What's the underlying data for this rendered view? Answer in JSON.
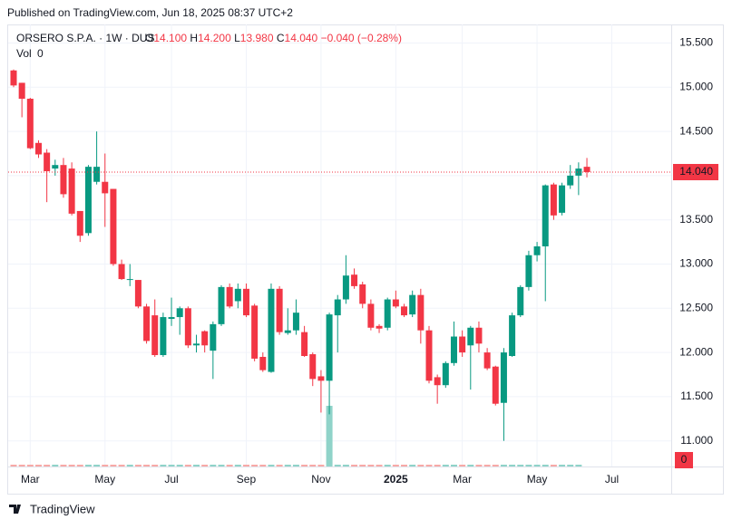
{
  "published": "Published on TradingView.com, Jun 18, 2025 08:37 UTC+2",
  "brand": "TradingView",
  "chart_data": {
    "type": "candlestick",
    "title": "ORSERO S.P.A. · 1W · DUS",
    "quote": [
      {
        "key": "O",
        "value": 14.1,
        "label": "14.100"
      },
      {
        "key": "H",
        "value": 14.2,
        "label": "14.200"
      },
      {
        "key": "L",
        "value": 13.98,
        "label": "13.980"
      },
      {
        "key": "C",
        "value": 14.04,
        "label": "14.040"
      }
    ],
    "change": {
      "value": -0.04,
      "label": "−0.040 (−0.28%)"
    },
    "volume_title": "Vol",
    "volume_last": 0,
    "up_color": "#089981",
    "down_color": "#f23645",
    "volume_color": "#8fd3c9",
    "categories": [
      null,
      null,
      "Mar",
      null,
      null,
      null,
      null,
      null,
      null,
      null,
      null,
      "May",
      null,
      null,
      null,
      null,
      null,
      null,
      null,
      "Jul",
      null,
      null,
      null,
      null,
      null,
      null,
      null,
      null,
      "Sep",
      null,
      null,
      null,
      null,
      null,
      null,
      null,
      null,
      "Nov",
      null,
      null,
      null,
      null,
      null,
      null,
      null,
      null,
      "2025",
      null,
      null,
      null,
      null,
      null,
      null,
      null,
      "Mar",
      null,
      null,
      null,
      null,
      null,
      null,
      null,
      null,
      "May",
      null,
      null,
      null,
      null,
      null,
      null,
      null,
      null,
      "Jul"
    ],
    "open": [
      15.19,
      15.05,
      14.87,
      14.37,
      14.26,
      14.08,
      14.12,
      14.08,
      13.6,
      13.35,
      13.93,
      13.93,
      13.85,
      13.0,
      12.82,
      12.82,
      12.52,
      12.42,
      11.97,
      12.38,
      12.4,
      12.5,
      12.08,
      12.24,
      12.02,
      12.32,
      12.74,
      12.58,
      12.72,
      12.53,
      11.95,
      11.78,
      12.72,
      12.22,
      12.25,
      12.23,
      11.98,
      11.73,
      11.68,
      12.42,
      12.6,
      12.88,
      12.77,
      12.55,
      12.3,
      12.28,
      12.6,
      12.52,
      12.43,
      12.65,
      12.25,
      11.72,
      11.63,
      11.88,
      12.18,
      12.08,
      12.28,
      12.0,
      11.84,
      11.43,
      11.96,
      12.42,
      12.74,
      13.1,
      13.2,
      13.9,
      13.58,
      13.89,
      14.0,
      14.1,
      null,
      null,
      null
    ],
    "high": [
      15.2,
      15.05,
      14.88,
      14.4,
      14.3,
      14.18,
      14.2,
      14.15,
      13.6,
      14.12,
      14.5,
      14.25,
      13.85,
      13.05,
      13.0,
      12.82,
      12.55,
      12.6,
      12.45,
      12.62,
      12.52,
      12.52,
      12.2,
      12.25,
      12.35,
      12.76,
      12.78,
      12.78,
      12.78,
      12.55,
      12.0,
      12.78,
      12.75,
      12.5,
      12.6,
      12.3,
      12.0,
      11.8,
      12.45,
      12.65,
      13.1,
      12.95,
      12.8,
      12.6,
      12.32,
      12.62,
      12.7,
      12.55,
      12.7,
      12.72,
      12.3,
      11.75,
      11.9,
      12.35,
      12.25,
      12.3,
      12.35,
      12.05,
      11.85,
      12.05,
      12.45,
      12.76,
      13.15,
      13.25,
      13.9,
      13.92,
      13.92,
      14.12,
      14.15,
      14.2,
      null,
      null,
      null
    ],
    "low": [
      15.0,
      14.66,
      14.3,
      14.2,
      13.7,
      14.0,
      13.75,
      13.55,
      13.25,
      13.32,
      13.9,
      13.42,
      12.98,
      12.82,
      12.75,
      12.5,
      12.1,
      11.95,
      11.95,
      12.3,
      12.2,
      12.05,
      12.0,
      12.0,
      11.7,
      12.3,
      12.5,
      12.5,
      12.4,
      11.9,
      11.78,
      11.77,
      12.2,
      12.2,
      12.2,
      11.95,
      11.62,
      11.32,
      11.3,
      12.0,
      12.55,
      12.72,
      12.5,
      12.25,
      12.22,
      12.25,
      12.5,
      12.4,
      12.4,
      12.1,
      11.65,
      11.42,
      11.6,
      11.85,
      11.95,
      11.58,
      12.0,
      11.8,
      11.4,
      11.0,
      11.95,
      12.4,
      12.7,
      13.03,
      12.58,
      13.5,
      13.55,
      13.85,
      13.78,
      13.98,
      null,
      null,
      null
    ],
    "close": [
      15.02,
      14.87,
      14.31,
      14.24,
      14.05,
      14.12,
      13.79,
      13.57,
      13.32,
      14.1,
      14.1,
      13.8,
      13.0,
      12.83,
      12.83,
      12.52,
      12.13,
      11.97,
      12.4,
      12.4,
      12.5,
      12.08,
      12.1,
      12.08,
      12.32,
      12.74,
      12.52,
      12.72,
      12.42,
      11.93,
      11.8,
      12.72,
      12.23,
      12.25,
      12.45,
      11.96,
      11.7,
      11.68,
      12.43,
      12.6,
      12.87,
      12.75,
      12.55,
      12.28,
      12.27,
      12.6,
      12.52,
      12.42,
      12.65,
      12.25,
      11.68,
      11.63,
      11.88,
      12.18,
      12.0,
      12.28,
      12.1,
      11.82,
      11.42,
      12.0,
      12.42,
      12.74,
      13.1,
      13.2,
      13.89,
      13.55,
      13.89,
      14.0,
      14.08,
      14.04,
      null,
      null,
      null
    ],
    "volume": [
      3,
      3,
      3,
      3,
      3,
      3,
      3,
      3,
      3,
      3,
      3,
      3,
      3,
      3,
      3,
      3,
      3,
      3,
      3,
      3,
      3,
      3,
      3,
      3,
      3,
      3,
      3,
      3,
      3,
      3,
      3,
      3,
      3,
      3,
      3,
      3,
      3,
      3,
      100,
      3,
      3,
      3,
      3,
      3,
      3,
      3,
      3,
      3,
      3,
      3,
      3,
      3,
      3,
      3,
      3,
      3,
      3,
      3,
      3,
      3,
      3,
      3,
      3,
      3,
      3,
      3,
      3,
      3,
      3,
      0,
      null,
      null,
      null
    ],
    "ylim": [
      10.71,
      15.71
    ],
    "yticks": [
      {
        "value": 11,
        "label": "11.000"
      },
      {
        "value": 11.5,
        "label": "11.500"
      },
      {
        "value": 12,
        "label": "12.000"
      },
      {
        "value": 12.5,
        "label": "12.500"
      },
      {
        "value": 13,
        "label": "13.000"
      },
      {
        "value": 13.5,
        "label": "13.500"
      },
      {
        "value": 14,
        "label": "14.000"
      },
      {
        "value": 14.5,
        "label": "14.500"
      },
      {
        "value": 15,
        "label": "15.000"
      },
      {
        "value": 15.5,
        "label": "15.500"
      }
    ],
    "grid": true
  }
}
